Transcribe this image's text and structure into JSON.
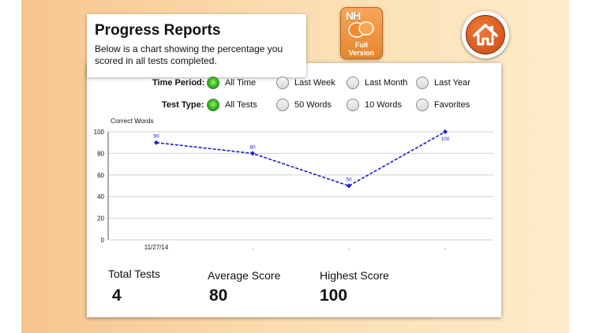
{
  "header": {
    "title": "Progress Reports",
    "description": "Below is a chart showing the percentage you scored in all tests completed."
  },
  "app_badge": {
    "logo_text": "NH",
    "caption_line1": "Full",
    "caption_line2": "Version"
  },
  "filters": {
    "time_period": {
      "label": "Time Period:",
      "options": [
        {
          "label": "All Time",
          "selected": true
        },
        {
          "label": "Last Week",
          "selected": false
        },
        {
          "label": "Last Month",
          "selected": false
        },
        {
          "label": "Last Year",
          "selected": false
        }
      ]
    },
    "test_type": {
      "label": "Test Type:",
      "options": [
        {
          "label": "All Tests",
          "selected": true
        },
        {
          "label": "50 Words",
          "selected": false
        },
        {
          "label": "10 Words",
          "selected": false
        },
        {
          "label": "Favorites",
          "selected": false
        }
      ]
    }
  },
  "chart_data": {
    "type": "line",
    "ylabel": "Correct Words",
    "ylim": [
      0,
      100
    ],
    "yticks": [
      "0",
      "20",
      "40",
      "60",
      "80",
      "100"
    ],
    "categories": [
      "11/27/14",
      ".",
      ".",
      "."
    ],
    "series": [
      {
        "values": [
          90,
          80,
          50,
          100
        ],
        "labels": [
          "90",
          "80",
          "50",
          "100"
        ]
      }
    ],
    "grid": true,
    "line_color": "#1a1ad0"
  },
  "stats": {
    "total_tests": {
      "label": "Total Tests",
      "value": "4"
    },
    "average_score": {
      "label": "Average Score",
      "value": "80"
    },
    "highest_score": {
      "label": "Highest Score",
      "value": "100"
    }
  }
}
